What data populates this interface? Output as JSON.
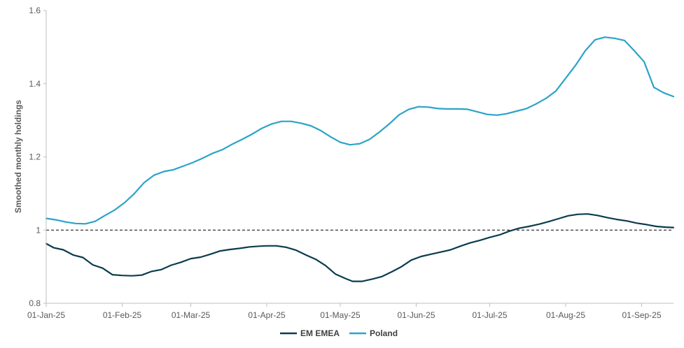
{
  "chart_data": {
    "type": "line",
    "ylabel": "Smoothed monthly holdings",
    "xlabel": "",
    "ylim": [
      0.8,
      1.6
    ],
    "yticks": [
      0.8,
      1,
      1.2,
      1.4,
      1.6
    ],
    "ytick_labels": [
      "0.8",
      "1",
      "1.2",
      "1.4",
      "1.6"
    ],
    "xlim": [
      "2025-01-01",
      "2025-09-14"
    ],
    "xticks": [
      "2025-01-01",
      "2025-02-01",
      "2025-03-01",
      "2025-04-01",
      "2025-05-01",
      "2025-06-01",
      "2025-07-01",
      "2025-08-01",
      "2025-09-01"
    ],
    "xtick_labels": [
      "01-Jan-25",
      "01-Feb-25",
      "01-Mar-25",
      "01-Apr-25",
      "01-May-25",
      "01-Jun-25",
      "01-Jul-25",
      "01-Aug-25",
      "01-Sep-25"
    ],
    "reference_line": {
      "y": 1,
      "style": "dashed",
      "color": "#000000"
    },
    "legend": {
      "position": "bottom"
    },
    "grid": false,
    "series": [
      {
        "name": "EM EMEA",
        "color": "#0b3c4d",
        "points": [
          [
            "2025-01-01",
            0.963
          ],
          [
            "2025-01-04",
            0.952
          ],
          [
            "2025-01-08",
            0.946
          ],
          [
            "2025-01-12",
            0.932
          ],
          [
            "2025-01-16",
            0.925
          ],
          [
            "2025-01-20",
            0.905
          ],
          [
            "2025-01-24",
            0.896
          ],
          [
            "2025-01-28",
            0.878
          ],
          [
            "2025-02-01",
            0.876
          ],
          [
            "2025-02-05",
            0.875
          ],
          [
            "2025-02-09",
            0.877
          ],
          [
            "2025-02-13",
            0.887
          ],
          [
            "2025-02-17",
            0.892
          ],
          [
            "2025-02-21",
            0.904
          ],
          [
            "2025-02-25",
            0.912
          ],
          [
            "2025-03-01",
            0.922
          ],
          [
            "2025-03-05",
            0.926
          ],
          [
            "2025-03-09",
            0.934
          ],
          [
            "2025-03-13",
            0.943
          ],
          [
            "2025-03-17",
            0.947
          ],
          [
            "2025-03-21",
            0.95
          ],
          [
            "2025-03-25",
            0.954
          ],
          [
            "2025-03-29",
            0.956
          ],
          [
            "2025-04-01",
            0.957
          ],
          [
            "2025-04-05",
            0.957
          ],
          [
            "2025-04-09",
            0.953
          ],
          [
            "2025-04-13",
            0.945
          ],
          [
            "2025-04-17",
            0.932
          ],
          [
            "2025-04-21",
            0.92
          ],
          [
            "2025-04-25",
            0.903
          ],
          [
            "2025-04-29",
            0.88
          ],
          [
            "2025-05-03",
            0.868
          ],
          [
            "2025-05-06",
            0.86
          ],
          [
            "2025-05-10",
            0.86
          ],
          [
            "2025-05-14",
            0.866
          ],
          [
            "2025-05-18",
            0.873
          ],
          [
            "2025-05-22",
            0.886
          ],
          [
            "2025-05-26",
            0.9
          ],
          [
            "2025-05-30",
            0.918
          ],
          [
            "2025-06-03",
            0.928
          ],
          [
            "2025-06-07",
            0.934
          ],
          [
            "2025-06-11",
            0.94
          ],
          [
            "2025-06-15",
            0.946
          ],
          [
            "2025-06-19",
            0.956
          ],
          [
            "2025-06-23",
            0.965
          ],
          [
            "2025-06-27",
            0.972
          ],
          [
            "2025-07-01",
            0.98
          ],
          [
            "2025-07-05",
            0.987
          ],
          [
            "2025-07-09",
            0.997
          ],
          [
            "2025-07-13",
            1.005
          ],
          [
            "2025-07-17",
            1.01
          ],
          [
            "2025-07-21",
            1.016
          ],
          [
            "2025-07-25",
            1.023
          ],
          [
            "2025-07-29",
            1.031
          ],
          [
            "2025-08-02",
            1.039
          ],
          [
            "2025-08-06",
            1.043
          ],
          [
            "2025-08-10",
            1.044
          ],
          [
            "2025-08-14",
            1.04
          ],
          [
            "2025-08-18",
            1.034
          ],
          [
            "2025-08-22",
            1.029
          ],
          [
            "2025-08-26",
            1.025
          ],
          [
            "2025-08-30",
            1.019
          ],
          [
            "2025-09-03",
            1.015
          ],
          [
            "2025-09-07",
            1.01
          ],
          [
            "2025-09-11",
            1.008
          ],
          [
            "2025-09-14",
            1.007
          ]
        ]
      },
      {
        "name": "Poland",
        "color": "#2ba3c9",
        "points": [
          [
            "2025-01-01",
            1.032
          ],
          [
            "2025-01-05",
            1.028
          ],
          [
            "2025-01-09",
            1.022
          ],
          [
            "2025-01-13",
            1.018
          ],
          [
            "2025-01-17",
            1.017
          ],
          [
            "2025-01-21",
            1.024
          ],
          [
            "2025-01-25",
            1.04
          ],
          [
            "2025-01-29",
            1.055
          ],
          [
            "2025-02-02",
            1.075
          ],
          [
            "2025-02-06",
            1.1
          ],
          [
            "2025-02-10",
            1.13
          ],
          [
            "2025-02-14",
            1.15
          ],
          [
            "2025-02-18",
            1.16
          ],
          [
            "2025-02-22",
            1.165
          ],
          [
            "2025-02-26",
            1.175
          ],
          [
            "2025-03-02",
            1.185
          ],
          [
            "2025-03-06",
            1.197
          ],
          [
            "2025-03-10",
            1.21
          ],
          [
            "2025-03-14",
            1.22
          ],
          [
            "2025-03-18",
            1.235
          ],
          [
            "2025-03-22",
            1.248
          ],
          [
            "2025-03-26",
            1.262
          ],
          [
            "2025-03-30",
            1.278
          ],
          [
            "2025-04-03",
            1.29
          ],
          [
            "2025-04-07",
            1.297
          ],
          [
            "2025-04-11",
            1.297
          ],
          [
            "2025-04-15",
            1.292
          ],
          [
            "2025-04-19",
            1.285
          ],
          [
            "2025-04-23",
            1.272
          ],
          [
            "2025-04-27",
            1.255
          ],
          [
            "2025-05-01",
            1.24
          ],
          [
            "2025-05-05",
            1.233
          ],
          [
            "2025-05-09",
            1.236
          ],
          [
            "2025-05-13",
            1.248
          ],
          [
            "2025-05-17",
            1.268
          ],
          [
            "2025-05-21",
            1.29
          ],
          [
            "2025-05-25",
            1.315
          ],
          [
            "2025-05-29",
            1.33
          ],
          [
            "2025-06-02",
            1.337
          ],
          [
            "2025-06-06",
            1.336
          ],
          [
            "2025-06-10",
            1.332
          ],
          [
            "2025-06-14",
            1.331
          ],
          [
            "2025-06-18",
            1.331
          ],
          [
            "2025-06-22",
            1.33
          ],
          [
            "2025-06-26",
            1.323
          ],
          [
            "2025-06-30",
            1.316
          ],
          [
            "2025-07-04",
            1.314
          ],
          [
            "2025-07-08",
            1.318
          ],
          [
            "2025-07-12",
            1.325
          ],
          [
            "2025-07-16",
            1.332
          ],
          [
            "2025-07-20",
            1.345
          ],
          [
            "2025-07-24",
            1.36
          ],
          [
            "2025-07-28",
            1.38
          ],
          [
            "2025-08-01",
            1.415
          ],
          [
            "2025-08-05",
            1.45
          ],
          [
            "2025-08-09",
            1.49
          ],
          [
            "2025-08-13",
            1.52
          ],
          [
            "2025-08-17",
            1.527
          ],
          [
            "2025-08-21",
            1.524
          ],
          [
            "2025-08-25",
            1.518
          ],
          [
            "2025-08-29",
            1.49
          ],
          [
            "2025-09-02",
            1.46
          ],
          [
            "2025-09-06",
            1.39
          ],
          [
            "2025-09-10",
            1.375
          ],
          [
            "2025-09-14",
            1.365
          ]
        ]
      }
    ]
  }
}
